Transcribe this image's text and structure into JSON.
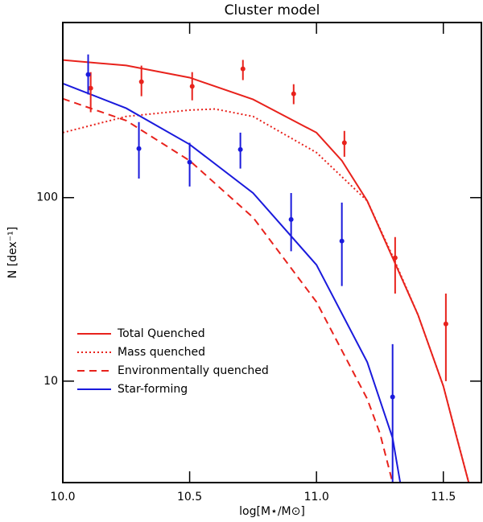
{
  "chart_data": {
    "type": "line",
    "title": "Cluster model",
    "xlabel": "log[M⋆/M⊙]",
    "ylabel": "N [dex⁻¹]",
    "log_y": true,
    "xlim": [
      10.0,
      11.65
    ],
    "ylim": [
      2.8,
      900
    ],
    "xticks": [
      {
        "value": 10.0,
        "label": "10.0"
      },
      {
        "value": 10.5,
        "label": "10.5"
      },
      {
        "value": 11.0,
        "label": "11.0"
      },
      {
        "value": 11.5,
        "label": "11.5"
      }
    ],
    "yticks": [
      10,
      100
    ],
    "legend": "lower left",
    "series": [
      {
        "name": "Total Quenched",
        "color": "#e8221c",
        "dash": "solid",
        "x": [
          10.0,
          10.25,
          10.5,
          10.75,
          11.0,
          11.1,
          11.2,
          11.3,
          11.4,
          11.5,
          11.55,
          11.6
        ],
        "values": [
          562,
          525,
          451,
          343,
          226,
          159,
          96,
          47,
          23,
          9.4,
          5.1,
          2.8
        ]
      },
      {
        "name": "Mass quenched",
        "color": "#e8221c",
        "dash": "dotted",
        "x": [
          10.0,
          10.25,
          10.5,
          10.6,
          10.75,
          11.0,
          11.2,
          11.3,
          11.4,
          11.5,
          11.6
        ],
        "values": [
          226,
          277,
          300,
          304,
          277,
          176,
          96,
          48,
          23,
          9.4,
          2.8
        ]
      },
      {
        "name": "Environmentally quenched",
        "color": "#e8221c",
        "dash": "dashed",
        "x": [
          10.0,
          10.25,
          10.5,
          10.75,
          11.0,
          11.2,
          11.25,
          11.3
        ],
        "values": [
          346,
          263,
          159,
          78,
          27,
          8,
          5.2,
          2.8
        ]
      },
      {
        "name": "Star-forming",
        "color": "#1a1adc",
        "dash": "solid",
        "x": [
          10.0,
          10.25,
          10.5,
          10.75,
          11.0,
          11.2,
          11.3,
          11.33
        ],
        "values": [
          419,
          307,
          195,
          106,
          43,
          12.7,
          4.9,
          2.8
        ]
      }
    ],
    "points": [
      {
        "color": "#e8221c",
        "x": [
          10.11,
          10.31,
          10.51,
          10.71,
          10.91,
          11.11,
          11.31,
          11.51
        ],
        "values": [
          395,
          428,
          404,
          503,
          368,
          199,
          47,
          20.5
        ],
        "lower": [
          292,
          357,
          339,
          437,
          323,
          167,
          30,
          10
        ],
        "upper": [
          483,
          524,
          483,
          563,
          415,
          231,
          61,
          30
        ]
      },
      {
        "color": "#1a1adc",
        "x": [
          10.1,
          10.3,
          10.5,
          10.7,
          10.9,
          11.1,
          11.3
        ],
        "values": [
          469,
          185,
          156,
          183,
          76,
          58,
          8.2
        ],
        "lower": [
          365,
          127,
          115,
          144,
          51,
          33,
          2.8
        ],
        "upper": [
          603,
          258,
          199,
          226,
          106,
          94,
          15.9
        ]
      }
    ]
  }
}
